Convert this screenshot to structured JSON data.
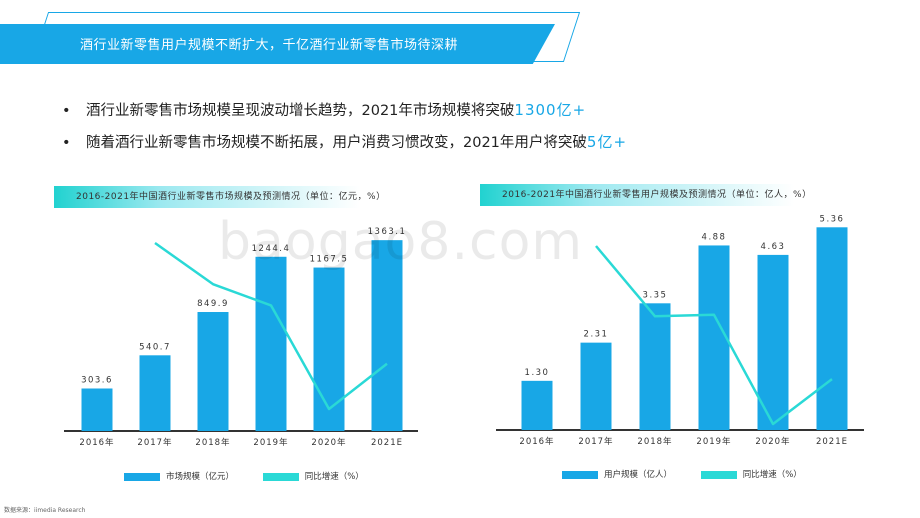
{
  "banner": {
    "title": "酒行业新零售用户规模不断扩大，千亿酒行业新零售市场待深耕"
  },
  "bullets": [
    {
      "text": "酒行业新零售市场规模呈现波动增长趋势，2021年市场规模将突破",
      "highlight": "1300亿+"
    },
    {
      "text": "随着酒行业新零售市场规模不断拓展，用户消费习惯改变，2021年用户将突破",
      "highlight": "5亿+"
    }
  ],
  "bullet_symbol": "•",
  "charts": [
    {
      "header": "2016-2021年中国酒行业新零售市场规模及预测情况（单位：亿元，%）",
      "legend": {
        "bar": "市场规模（亿元）",
        "line": "同比增速（%）"
      }
    },
    {
      "header": "2016-2021年中国酒行业新零售用户规模及预测情况（单位：亿人，%）",
      "legend": {
        "bar": "用户规模（亿人）",
        "line": "同比增速（%）"
      }
    }
  ],
  "chart_data": [
    {
      "type": "bar",
      "categories": [
        "2016年",
        "2017年",
        "2018年",
        "2019年",
        "2020年",
        "2021E"
      ],
      "series": [
        {
          "name": "市场规模（亿元）",
          "type": "bar",
          "values": [
            303.6,
            540.7,
            849.9,
            1244.4,
            1167.5,
            1363.1
          ]
        },
        {
          "name": "同比增速（%）",
          "type": "line",
          "values": [
            null,
            78.1,
            57.2,
            46.4,
            -6.2,
            16.8
          ]
        }
      ],
      "ylim": [
        0,
        1400
      ],
      "grid": false,
      "legend_position": "bottom"
    },
    {
      "type": "bar",
      "categories": [
        "2016年",
        "2017年",
        "2018年",
        "2019年",
        "2020年",
        "2021E"
      ],
      "series": [
        {
          "name": "用户规模（亿人）",
          "type": "bar",
          "values": [
            1.3,
            2.31,
            3.35,
            4.88,
            4.63,
            5.36
          ]
        },
        {
          "name": "同比增速（%）",
          "type": "line",
          "values": [
            null,
            77.7,
            45.0,
            45.7,
            -5.1,
            15.8
          ]
        }
      ],
      "ylim": [
        0,
        5.5
      ],
      "grid": false,
      "legend_position": "bottom"
    }
  ],
  "colors": {
    "accent": "#18a7e6",
    "bar": "#18a7e6",
    "line": "#2ad9d6",
    "axis": "#333333"
  },
  "source": "数据来源：iimedia Research",
  "watermark": "baogao8.com"
}
